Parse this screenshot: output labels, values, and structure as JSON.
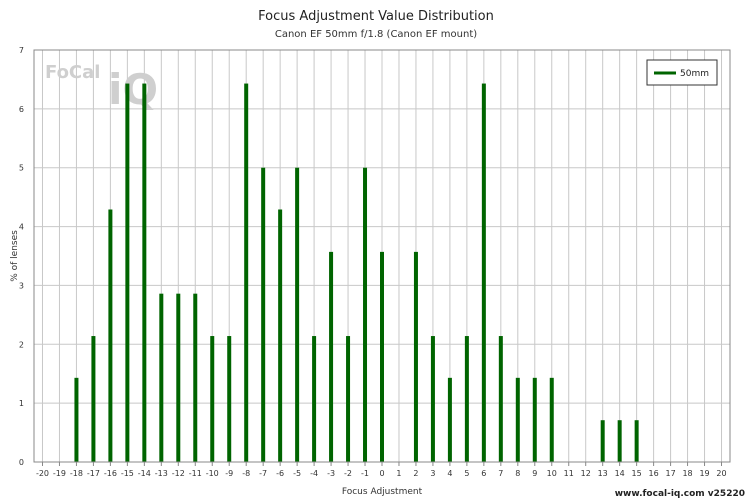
{
  "chart_data": {
    "type": "bar",
    "title": "Focus Adjustment Value Distribution",
    "subtitle": "Canon EF 50mm f/1.8 (Canon EF mount)",
    "xlabel": "Focus Adjustment",
    "ylabel": "% of lenses",
    "xlim": [
      -20,
      20
    ],
    "ylim": [
      0,
      7
    ],
    "grid": true,
    "legend_position": "top-right",
    "series": [
      {
        "name": "50mm",
        "color": "#006400",
        "x": [
          -18,
          -17,
          -16,
          -15,
          -14,
          -13,
          -12,
          -11,
          -10,
          -9,
          -8,
          -7,
          -6,
          -5,
          -4,
          -3,
          -2,
          -1,
          0,
          2,
          3,
          4,
          5,
          6,
          7,
          8,
          9,
          10,
          13,
          14,
          15
        ],
        "values": [
          1.43,
          2.14,
          4.29,
          6.43,
          6.43,
          2.86,
          2.86,
          2.86,
          2.14,
          2.14,
          6.43,
          5.0,
          4.29,
          5.0,
          2.14,
          3.57,
          2.14,
          5.0,
          3.57,
          3.57,
          2.14,
          1.43,
          2.14,
          6.43,
          2.14,
          1.43,
          1.43,
          1.43,
          0.71,
          0.71,
          0.71
        ]
      }
    ]
  },
  "watermark": "www.focal-iq.com  v25220",
  "logo": {
    "text_a": "FoCal",
    "text_b": "iQ"
  }
}
